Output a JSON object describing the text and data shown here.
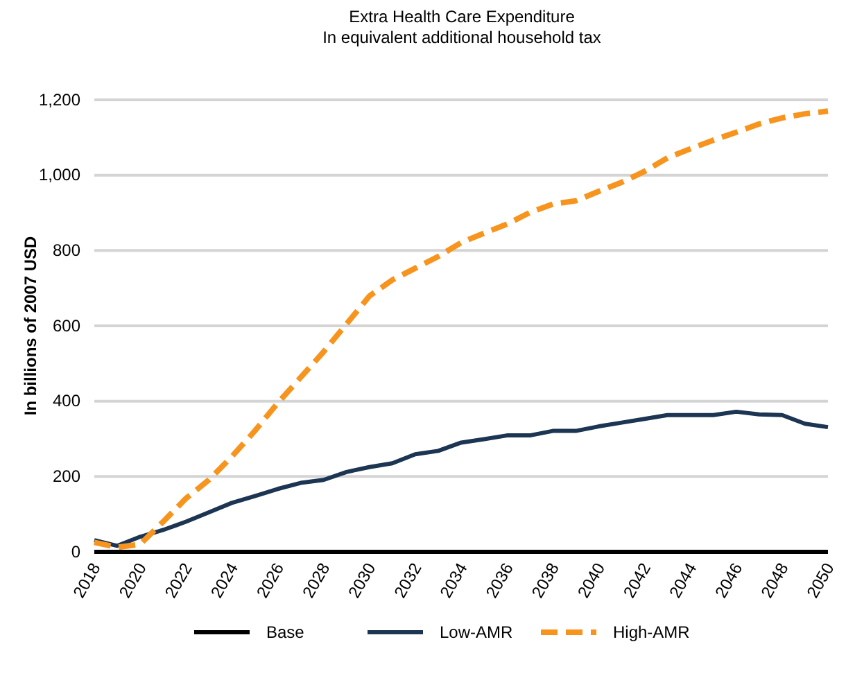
{
  "chart_data": {
    "type": "line",
    "title": "Extra Health Care Expenditure",
    "subtitle": "In equivalent additional household tax",
    "ylabel": "In billions of 2007 USD",
    "categories": [
      "2018",
      null,
      "2020",
      null,
      "2022",
      null,
      "2024",
      null,
      "2026",
      null,
      "2028",
      null,
      "2030",
      null,
      "2032",
      null,
      "2034",
      null,
      "2036",
      null,
      "2038",
      null,
      "2040",
      null,
      "2042",
      null,
      "2044",
      null,
      "2046",
      null,
      "2048",
      null,
      "2050"
    ],
    "ylim": [
      0,
      1200
    ],
    "yticks": [
      0,
      200,
      400,
      600,
      800,
      {
        "value": 1000,
        "label": "1,000"
      },
      {
        "value": 1200,
        "label": "1,200"
      }
    ],
    "grid": "y",
    "legend": "bottom",
    "marker": "none",
    "series": [
      {
        "name": "Base",
        "color": "#000000",
        "line_style": "solid",
        "values": [
          0,
          0,
          0,
          0,
          0,
          0,
          0,
          0,
          0,
          0,
          0,
          0,
          0,
          0,
          0,
          0,
          0,
          0,
          0,
          0,
          0,
          0,
          0,
          0,
          0,
          0,
          0,
          0,
          0,
          0,
          0,
          0,
          0
        ]
      },
      {
        "name": "Low-AMR",
        "color": "#1c3552",
        "line_style": "solid",
        "values": [
          31,
          16,
          40,
          58,
          80,
          105,
          130,
          148,
          167,
          183,
          191,
          212,
          225,
          235,
          259,
          268,
          290,
          299,
          309,
          309,
          321,
          321,
          333,
          343,
          353,
          363,
          363,
          363,
          372,
          365,
          363,
          340,
          331
        ]
      },
      {
        "name": "High-AMR",
        "color": "#f7941d",
        "line_style": "dashed",
        "values": [
          25,
          12,
          20,
          80,
          142,
          191,
          253,
          321,
          395,
          463,
          531,
          605,
          679,
          722,
          753,
          784,
          821,
          846,
          870,
          901,
          923,
          932,
          957,
          981,
          1010,
          1046,
          1070,
          1093,
          1114,
          1136,
          1152,
          1163,
          1170
        ]
      }
    ]
  }
}
